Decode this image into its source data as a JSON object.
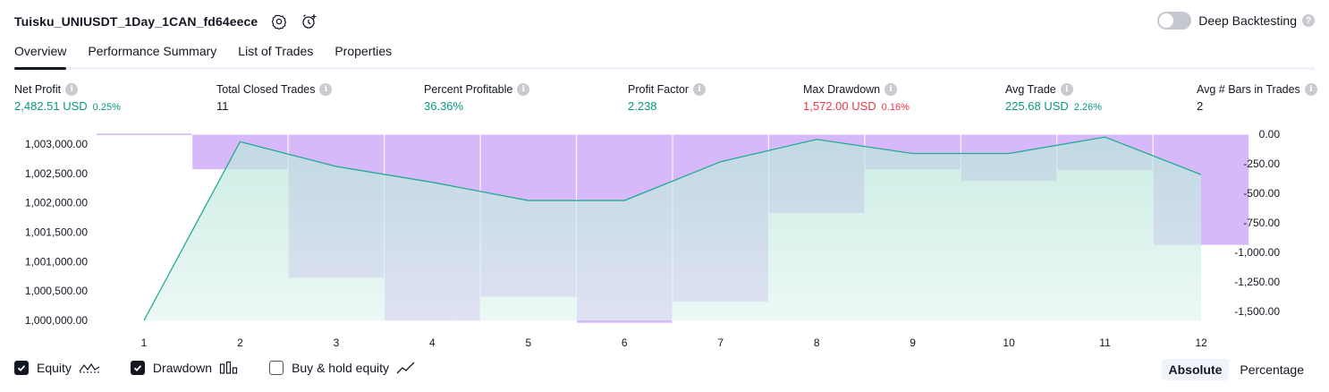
{
  "header": {
    "title": "Tuisku_UNIUSDT_1Day_1CAN_fd64eece",
    "deep_backtesting_label": "Deep Backtesting",
    "help_glyph": "?"
  },
  "tabs": [
    {
      "label": "Overview",
      "active": true
    },
    {
      "label": "Performance Summary",
      "active": false
    },
    {
      "label": "List of Trades",
      "active": false
    },
    {
      "label": "Properties",
      "active": false
    }
  ],
  "metrics": {
    "net_profit": {
      "label": "Net Profit",
      "value": "2,482.51 USD",
      "pct": "0.25%"
    },
    "total_closed_trades": {
      "label": "Total Closed Trades",
      "value": "11"
    },
    "percent_profitable": {
      "label": "Percent Profitable",
      "value": "36.36%"
    },
    "profit_factor": {
      "label": "Profit Factor",
      "value": "2.238"
    },
    "max_drawdown": {
      "label": "Max Drawdown",
      "value": "1,572.00 USD",
      "pct": "0.16%"
    },
    "avg_trade": {
      "label": "Avg Trade",
      "value": "225.68 USD",
      "pct": "2.26%"
    },
    "avg_bars": {
      "label": "Avg # Bars in Trades",
      "value": "2"
    },
    "info_glyph": "i"
  },
  "colors": {
    "equity_line": "#22ab94",
    "equity_fill_top": "#b9e7dc",
    "drawdown_fill": "#c9a2f7",
    "positive": "#089981",
    "negative": "#f23645"
  },
  "chart_data": {
    "type": "area",
    "x": [
      1,
      2,
      3,
      4,
      5,
      6,
      7,
      8,
      9,
      10,
      11,
      12
    ],
    "series": [
      {
        "name": "Equity",
        "axis": "left",
        "values": [
          1000000,
          1003040,
          1002620,
          1002350,
          1002040,
          1002040,
          1002700,
          1003080,
          1002840,
          1002840,
          1003120,
          1002480
        ]
      },
      {
        "name": "Drawdown",
        "axis": "right",
        "type": "bar",
        "values": [
          0,
          -300,
          -1220,
          -1580,
          -1380,
          -1600,
          -1420,
          -670,
          -300,
          -400,
          -310,
          -940
        ]
      }
    ],
    "y_left_ticks": [
      "1,003,000.00",
      "1,002,500.00",
      "1,002,000.00",
      "1,001,500.00",
      "1,001,000.00",
      "1,000,500.00",
      "1,000,000.00"
    ],
    "y_left_tick_values": [
      1003000,
      1002500,
      1002000,
      1001500,
      1001000,
      1000500,
      1000000
    ],
    "y_right_ticks": [
      "0.00",
      "-250.00",
      "-500.00",
      "-750.00",
      "-1,000.00",
      "-1,250.00",
      "-1,500.00"
    ],
    "y_right_tick_values": [
      0,
      -250,
      -500,
      -750,
      -1000,
      -1250,
      -1500
    ],
    "x_ticks": [
      "1",
      "2",
      "3",
      "4",
      "5",
      "6",
      "7",
      "8",
      "9",
      "10",
      "11",
      "12"
    ],
    "ylim_left": [
      1000000,
      1003200
    ],
    "ylim_right": [
      -1600,
      0
    ]
  },
  "legend": {
    "equity": {
      "label": "Equity",
      "checked": true
    },
    "drawdown": {
      "label": "Drawdown",
      "checked": true
    },
    "buy_hold": {
      "label": "Buy & hold equity",
      "checked": false
    }
  },
  "modes": {
    "absolute": "Absolute",
    "percentage": "Percentage",
    "selected": "absolute"
  }
}
